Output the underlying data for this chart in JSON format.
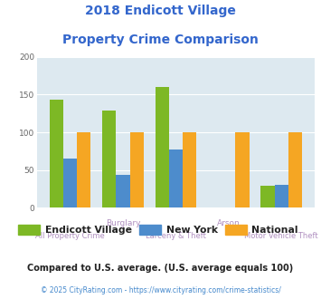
{
  "title_line1": "2018 Endicott Village",
  "title_line2": "Property Crime Comparison",
  "title_color": "#3366cc",
  "categories": [
    "All Property Crime",
    "Burglary",
    "Larceny & Theft",
    "Arson",
    "Motor Vehicle Theft"
  ],
  "endicott_values": [
    143,
    129,
    160,
    0,
    29
  ],
  "newyork_values": [
    65,
    44,
    77,
    0,
    30
  ],
  "national_values": [
    100,
    100,
    100,
    100,
    100
  ],
  "endicott_color": "#7db825",
  "newyork_color": "#4d8ccc",
  "national_color": "#f5a623",
  "ylim": [
    0,
    200
  ],
  "yticks": [
    0,
    50,
    100,
    150,
    200
  ],
  "plot_bg_color": "#dde9f0",
  "fig_bg_color": "#ffffff",
  "legend_labels": [
    "Endicott Village",
    "New York",
    "National"
  ],
  "footnote1": "Compared to U.S. average. (U.S. average equals 100)",
  "footnote2": "© 2025 CityRating.com - https://www.cityrating.com/crime-statistics/",
  "footnote1_color": "#222222",
  "footnote2_color": "#4488cc",
  "xlabel_top_color": "#b090c0",
  "xlabel_bot_color": "#b090c0",
  "grid_color": "#ffffff",
  "top_labels": {
    "1": "Burglary",
    "3": "Arson"
  },
  "bot_labels": {
    "0": "All Property Crime",
    "2": "Larceny & Theft",
    "4": "Motor Vehicle Theft"
  }
}
